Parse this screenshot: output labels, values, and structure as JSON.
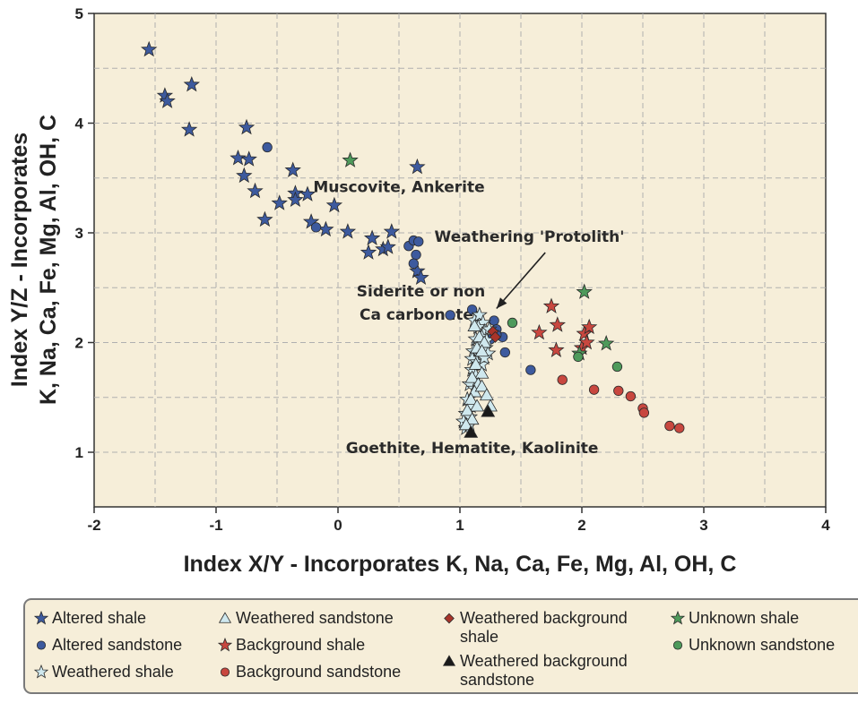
{
  "chart_data": {
    "type": "scatter",
    "xlabel": "Index X/Y - Incorporates K, Na, Ca, Fe, Mg, Al, OH, C",
    "ylabel_line1": "Index Y/Z - Incorporates",
    "ylabel_line2": "K, Na, Ca, Fe, Mg, Al, OH, C",
    "xlim": [
      -2,
      4
    ],
    "ylim": [
      0.5,
      5
    ],
    "xticks": [
      "-2",
      "-1",
      "0",
      "1",
      "2",
      "3",
      "4"
    ],
    "yticks": [
      "1",
      "2",
      "3",
      "4",
      "5"
    ],
    "grid": true,
    "annotations": [
      {
        "text": "Muscovite, Ankerite",
        "x": 0.5,
        "y": 3.37
      },
      {
        "text": "Weathering 'Protolith'",
        "x": 1.57,
        "y": 2.92
      },
      {
        "text": "Siderite or non",
        "x": 0.68,
        "y": 2.42
      },
      {
        "text": "Ca carbonates",
        "x": 0.68,
        "y": 2.21
      },
      {
        "text": "Goethite, Hematite, Kaolinite",
        "x": 1.1,
        "y": 0.99
      }
    ],
    "arrow": {
      "from": [
        1.7,
        2.82
      ],
      "to": [
        1.3,
        2.31
      ]
    },
    "series": [
      {
        "name": "Altered shale",
        "marker": "star",
        "color": "#3d5a9e",
        "points": [
          [
            -1.55,
            4.67
          ],
          [
            -1.42,
            4.25
          ],
          [
            -1.4,
            4.2
          ],
          [
            -1.2,
            4.35
          ],
          [
            -1.22,
            3.94
          ],
          [
            -0.75,
            3.96
          ],
          [
            -0.82,
            3.68
          ],
          [
            -0.73,
            3.67
          ],
          [
            -0.77,
            3.52
          ],
          [
            -0.68,
            3.38
          ],
          [
            -0.6,
            3.12
          ],
          [
            -0.48,
            3.27
          ],
          [
            -0.37,
            3.57
          ],
          [
            -0.35,
            3.36
          ],
          [
            -0.35,
            3.3
          ],
          [
            -0.25,
            3.35
          ],
          [
            -0.22,
            3.1
          ],
          [
            -0.1,
            3.03
          ],
          [
            -0.03,
            3.25
          ],
          [
            0.08,
            3.01
          ],
          [
            0.25,
            2.82
          ],
          [
            0.28,
            2.95
          ],
          [
            0.37,
            2.85
          ],
          [
            0.41,
            2.87
          ],
          [
            0.44,
            3.01
          ],
          [
            0.65,
            3.6
          ],
          [
            0.65,
            2.65
          ],
          [
            0.68,
            2.59
          ]
        ]
      },
      {
        "name": "Altered sandstone",
        "marker": "circle",
        "color": "#3d5a9e",
        "points": [
          [
            -0.58,
            3.78
          ],
          [
            -0.18,
            3.05
          ],
          [
            0.58,
            2.88
          ],
          [
            0.62,
            2.93
          ],
          [
            0.66,
            2.92
          ],
          [
            0.64,
            2.8
          ],
          [
            0.62,
            2.72
          ],
          [
            0.92,
            2.25
          ],
          [
            1.1,
            2.3
          ],
          [
            1.28,
            2.2
          ],
          [
            1.3,
            2.12
          ],
          [
            1.35,
            2.05
          ],
          [
            1.37,
            1.91
          ],
          [
            1.58,
            1.75
          ],
          [
            1.25,
            2.03
          ],
          [
            1.3,
            2.07
          ]
        ]
      },
      {
        "name": "Weathered shale",
        "marker": "star",
        "color": "#cfe8ee",
        "points": [
          [
            1.12,
            2.2
          ],
          [
            1.16,
            2.25
          ],
          [
            1.19,
            2.18
          ],
          [
            1.15,
            2.14
          ],
          [
            1.2,
            2.1
          ],
          [
            1.24,
            2.12
          ],
          [
            1.18,
            2.05
          ],
          [
            1.13,
            2.03
          ],
          [
            1.22,
            2.02
          ],
          [
            1.17,
            1.98
          ],
          [
            1.21,
            1.95
          ],
          [
            1.11,
            1.92
          ],
          [
            1.15,
            1.9
          ],
          [
            1.19,
            1.88
          ],
          [
            1.23,
            1.9
          ],
          [
            1.1,
            1.85
          ],
          [
            1.14,
            1.82
          ],
          [
            1.18,
            1.8
          ],
          [
            1.2,
            1.86
          ],
          [
            1.1,
            1.75
          ],
          [
            1.13,
            1.7
          ],
          [
            1.08,
            1.62
          ],
          [
            1.12,
            1.58
          ],
          [
            1.06,
            1.48
          ],
          [
            1.09,
            1.42
          ],
          [
            1.05,
            1.35
          ],
          [
            1.08,
            1.32
          ],
          [
            1.03,
            1.28
          ],
          [
            1.05,
            1.22
          ],
          [
            1.08,
            1.25
          ]
        ]
      },
      {
        "name": "Weathered sandstone",
        "marker": "triangle",
        "color": "#cfe8ee",
        "points": [
          [
            1.12,
            2.15
          ],
          [
            1.16,
            2.05
          ],
          [
            1.2,
            2.0
          ],
          [
            1.14,
            1.95
          ],
          [
            1.18,
            1.92
          ],
          [
            1.13,
            1.8
          ],
          [
            1.18,
            1.72
          ],
          [
            1.1,
            1.68
          ],
          [
            1.15,
            1.62
          ],
          [
            1.12,
            1.55
          ],
          [
            1.18,
            1.6
          ],
          [
            1.22,
            1.52
          ],
          [
            1.09,
            1.48
          ],
          [
            1.14,
            1.42
          ],
          [
            1.25,
            1.42
          ],
          [
            1.06,
            1.38
          ],
          [
            1.1,
            1.3
          ],
          [
            1.05,
            1.25
          ]
        ]
      },
      {
        "name": "Weathered background shale",
        "marker": "diamond",
        "color": "#a8342a",
        "points": [
          [
            1.27,
            2.1
          ],
          [
            1.29,
            2.05
          ]
        ]
      },
      {
        "name": "Weathered background sandstone",
        "marker": "triangle",
        "color": "#1a1a1a",
        "points": [
          [
            1.23,
            1.37
          ],
          [
            1.09,
            1.18
          ]
        ]
      },
      {
        "name": "Background shale",
        "marker": "star",
        "color": "#c8473f",
        "points": [
          [
            1.75,
            2.33
          ],
          [
            1.65,
            2.09
          ],
          [
            1.8,
            2.16
          ],
          [
            1.79,
            1.93
          ],
          [
            2.0,
            1.95
          ],
          [
            2.02,
            2.08
          ],
          [
            2.04,
            2.0
          ],
          [
            2.06,
            2.14
          ]
        ]
      },
      {
        "name": "Background sandstone",
        "marker": "circle",
        "color": "#c8473f",
        "points": [
          [
            1.84,
            1.66
          ],
          [
            2.1,
            1.57
          ],
          [
            2.3,
            1.56
          ],
          [
            2.4,
            1.51
          ],
          [
            2.5,
            1.4
          ],
          [
            2.51,
            1.36
          ],
          [
            2.72,
            1.24
          ],
          [
            2.8,
            1.22
          ]
        ]
      },
      {
        "name": "Unknown shale",
        "marker": "star",
        "color": "#4e9a5b",
        "points": [
          [
            0.1,
            3.66
          ],
          [
            2.02,
            2.46
          ],
          [
            2.2,
            1.99
          ],
          [
            1.98,
            1.9
          ]
        ]
      },
      {
        "name": "Unknown sandstone",
        "marker": "circle",
        "color": "#4e9a5b",
        "points": [
          [
            1.43,
            2.18
          ],
          [
            1.97,
            1.87
          ],
          [
            2.29,
            1.78
          ]
        ]
      }
    ],
    "legend_placement": "bottom"
  },
  "legend": {
    "items": [
      {
        "label": "Altered shale",
        "marker": "star",
        "color": "#3d5a9e"
      },
      {
        "label": "Altered sandstone",
        "marker": "circle",
        "color": "#3d5a9e"
      },
      {
        "label": "Weathered shale",
        "marker": "star",
        "color": "#cfe8ee"
      },
      {
        "label": "Weathered sandstone",
        "marker": "triangle",
        "color": "#cfe8ee"
      },
      {
        "label": "Background shale",
        "marker": "star",
        "color": "#c8473f"
      },
      {
        "label": "Background sandstone",
        "marker": "circle",
        "color": "#c8473f"
      },
      {
        "label": "Weathered background",
        "label2": "shale",
        "marker": "diamond",
        "color": "#a8342a"
      },
      {
        "label": "Weathered background",
        "label2": "sandstone",
        "marker": "triangle",
        "color": "#1a1a1a"
      },
      {
        "label": "Unknown shale",
        "marker": "star",
        "color": "#4e9a5b"
      },
      {
        "label": "Unknown sandstone",
        "marker": "circle",
        "color": "#4e9a5b"
      }
    ]
  }
}
